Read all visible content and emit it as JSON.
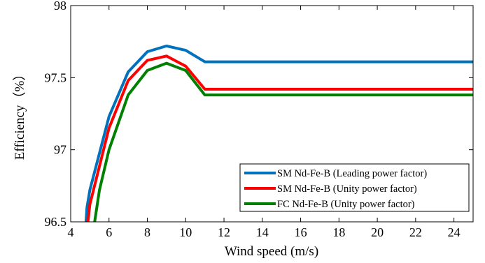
{
  "chart_data": {
    "type": "line",
    "xlabel": "Wind speed (m/s)",
    "ylabel": "Efficiency（%）",
    "xlim": [
      4,
      25
    ],
    "ylim": [
      96.5,
      98
    ],
    "xticks": [
      4,
      6,
      8,
      10,
      12,
      14,
      16,
      18,
      20,
      22,
      24
    ],
    "xtick_labels": [
      "4",
      "6",
      "8",
      "10",
      "12",
      "14",
      "16",
      "18",
      "20",
      "22",
      "24"
    ],
    "yticks": [
      96.5,
      97,
      97.5,
      98
    ],
    "ytick_labels": [
      "96.5",
      "97",
      "97.5",
      "98"
    ],
    "grid": false,
    "legend_position": "bottom-right",
    "series": [
      {
        "name": "SM Nd-Fe-B (Leading power factor)",
        "color": "#0072BD",
        "x": [
          4.8,
          4.85,
          5,
          6,
          7,
          8,
          9,
          10,
          11,
          12,
          14,
          16,
          18,
          20,
          22,
          24,
          25
        ],
        "y": [
          96.5,
          96.6,
          96.72,
          97.23,
          97.54,
          97.68,
          97.72,
          97.69,
          97.61,
          97.61,
          97.61,
          97.61,
          97.61,
          97.61,
          97.61,
          97.61,
          97.61
        ]
      },
      {
        "name": "SM Nd-Fe-B (Unity power factor)",
        "color": "#FF0000",
        "x": [
          4.9,
          5,
          6,
          7,
          8,
          9,
          10,
          11,
          12,
          14,
          16,
          18,
          20,
          22,
          24,
          25
        ],
        "y": [
          96.5,
          96.62,
          97.15,
          97.48,
          97.62,
          97.65,
          97.58,
          97.42,
          97.42,
          97.42,
          97.42,
          97.42,
          97.42,
          97.42,
          97.42,
          97.42
        ]
      },
      {
        "name": "FC Nd-Fe-B (Unity power factor)",
        "color": "#008000",
        "x": [
          5.25,
          5.5,
          6,
          7,
          8,
          9,
          10,
          11,
          12,
          14,
          16,
          18,
          20,
          22,
          24,
          25
        ],
        "y": [
          96.5,
          96.72,
          97.0,
          97.38,
          97.55,
          97.6,
          97.55,
          97.38,
          97.38,
          97.38,
          97.38,
          97.38,
          97.38,
          97.38,
          97.38,
          97.38
        ]
      }
    ]
  }
}
